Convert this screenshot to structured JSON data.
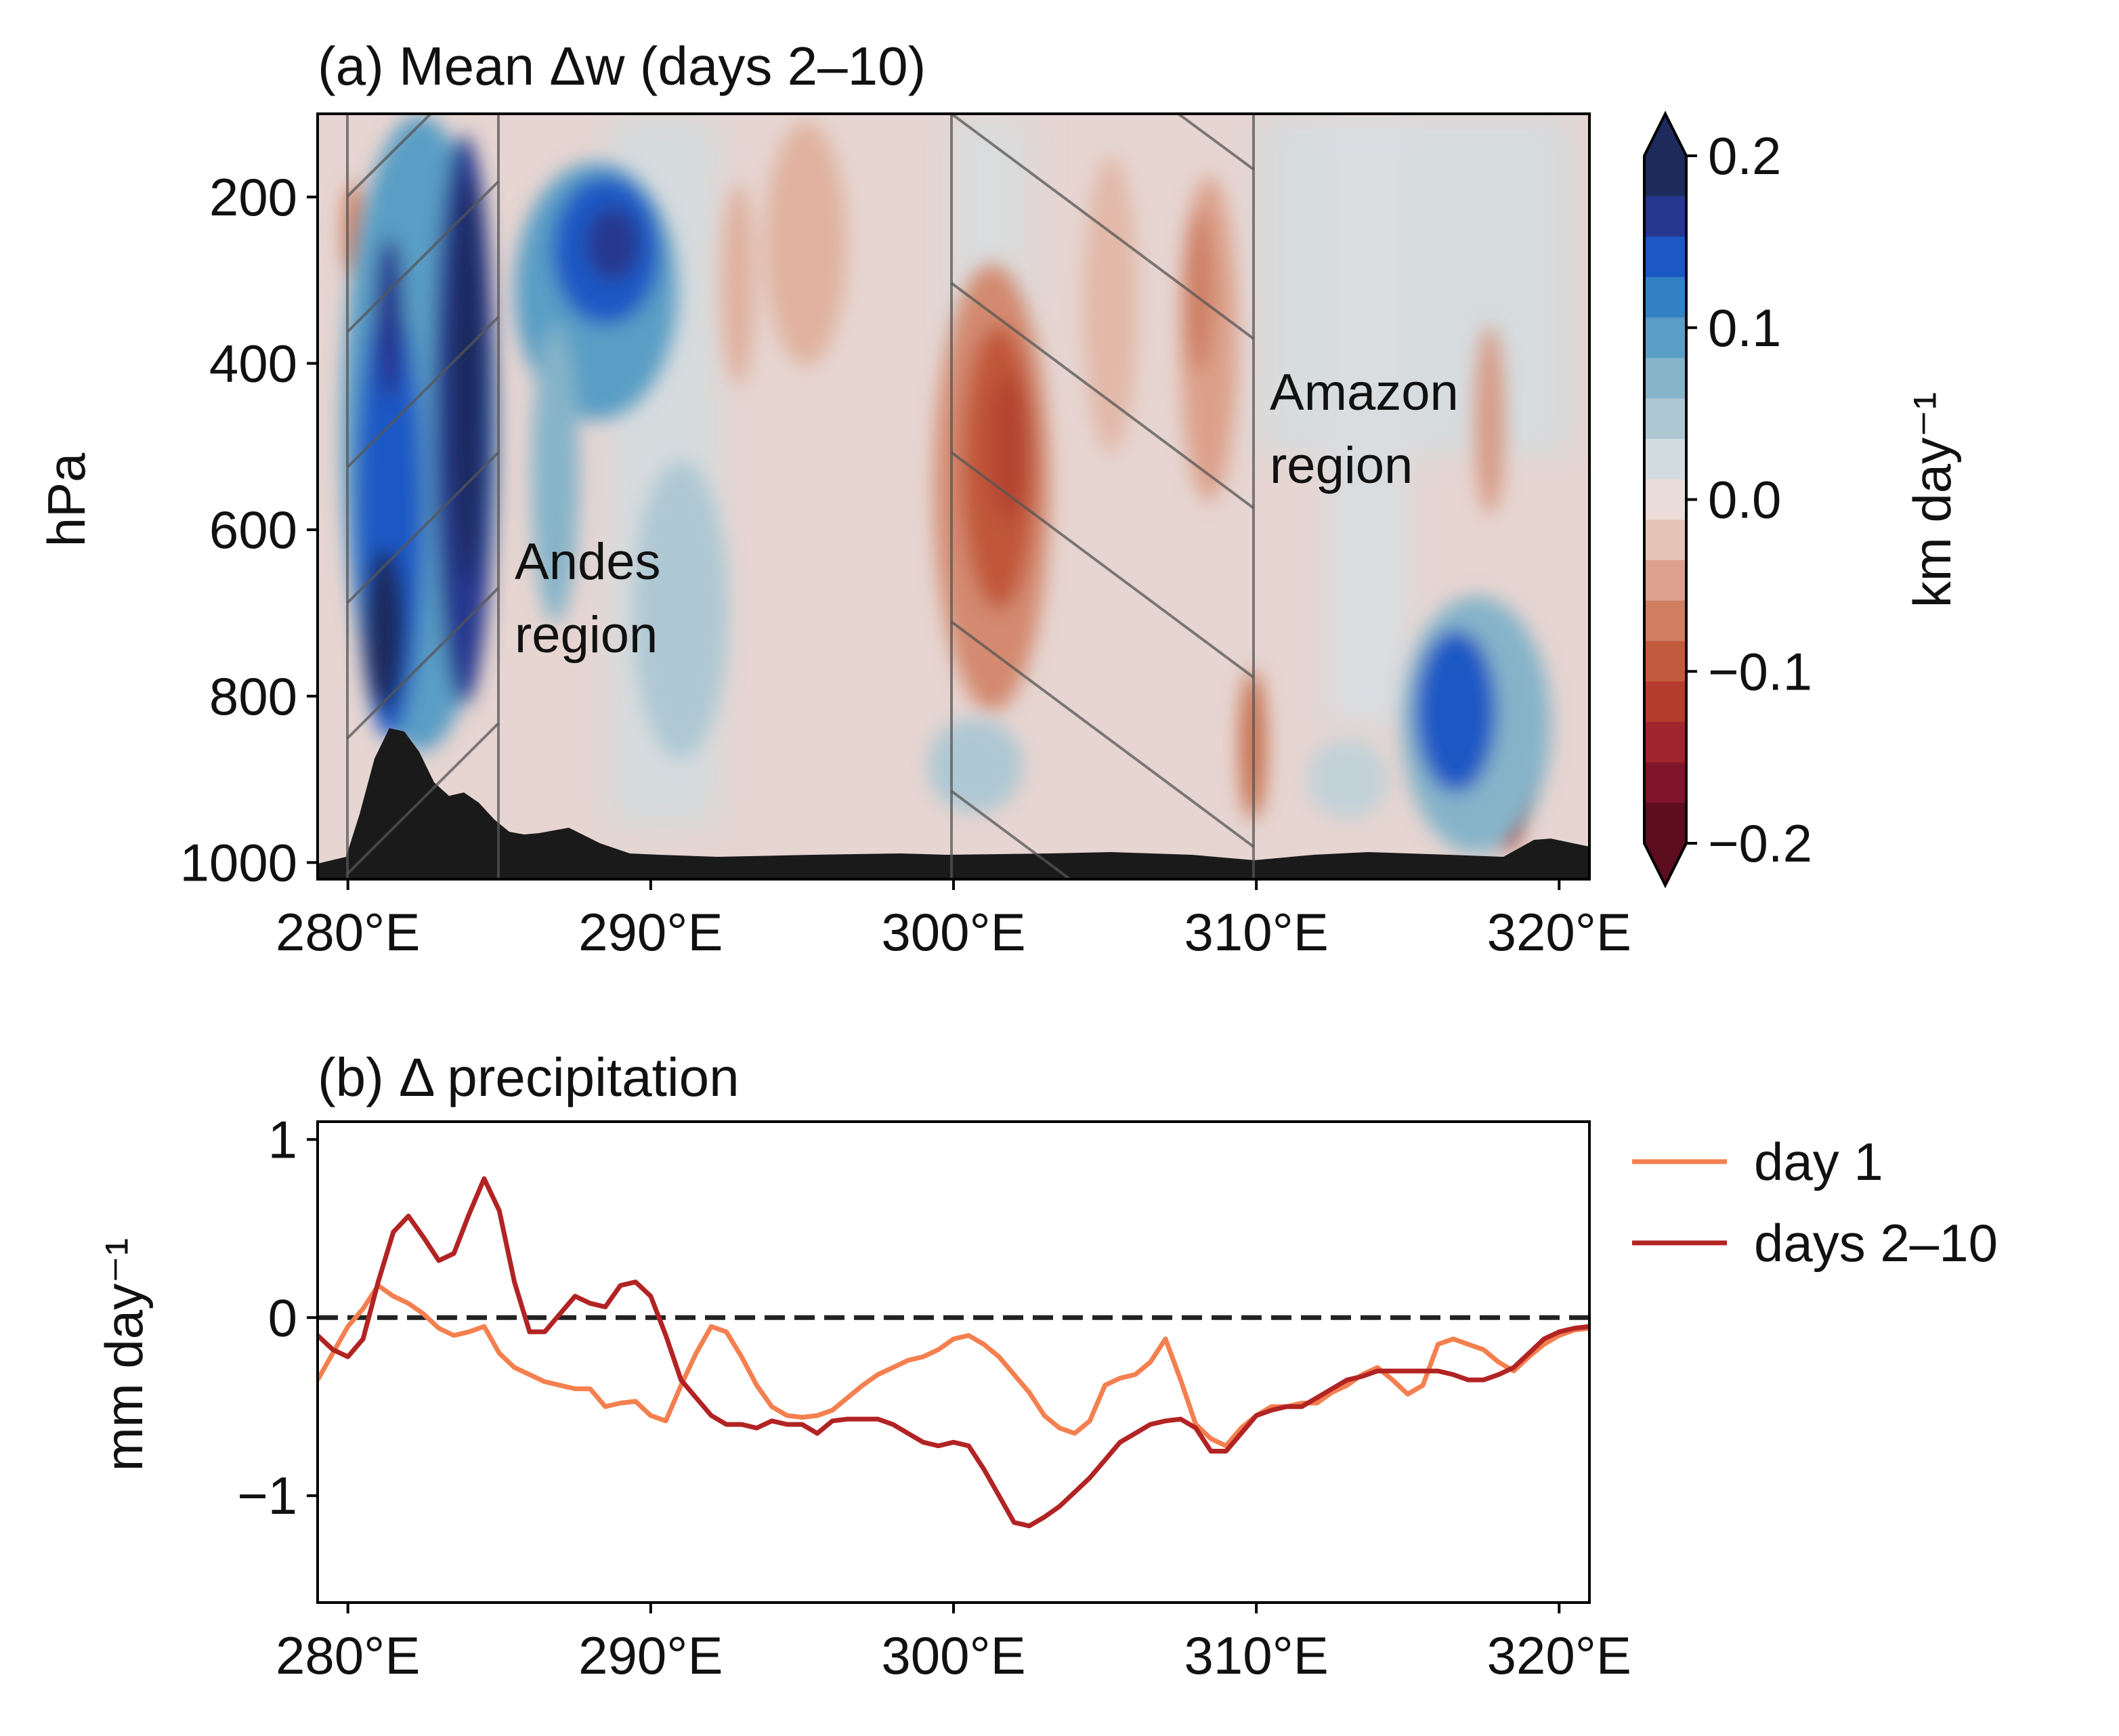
{
  "panel_a": {
    "title": "(a) Mean Δw (days 2–10)",
    "ylabel": "hPa",
    "annotations": {
      "andes_1": "Andes",
      "andes_2": "region",
      "amazon_1": "Amazon",
      "amazon_2": "region"
    },
    "colorbar": {
      "label": "km day⁻¹",
      "ticks": [
        "0.2",
        "0.1",
        "0.0",
        "−0.1",
        "−0.2"
      ],
      "colors": [
        "#1d2b5c",
        "#25378f",
        "#1b58c4",
        "#3480c4",
        "#5a9ec5",
        "#85b4c9",
        "#aec8d3",
        "#d3dce0",
        "#eadcd8",
        "#e6c3b7",
        "#dca18c",
        "#cf7e62",
        "#c25b3e",
        "#b53b2d",
        "#a22430",
        "#80142a",
        "#5c0d1e"
      ]
    }
  },
  "panel_b": {
    "title": "(b) Δ precipitation",
    "ylabel": "mm day⁻¹",
    "legend": {
      "day1": "day 1",
      "days210": "days 2–10"
    }
  },
  "chart_data": [
    {
      "type": "heatmap",
      "title": "(a) Mean Δw (days 2–10)",
      "xlabel": "",
      "ylabel": "hPa",
      "x_ticks": [
        "280°E",
        "290°E",
        "300°E",
        "310°E",
        "320°E"
      ],
      "x_tick_values": [
        280,
        290,
        300,
        310,
        320
      ],
      "y_ticks": [
        "200",
        "400",
        "600",
        "800",
        "1000"
      ],
      "y_tick_values": [
        200,
        400,
        600,
        800,
        1000
      ],
      "xlim": [
        279,
        321
      ],
      "ylim": [
        1020,
        100
      ],
      "colorbar_range": [
        -0.2,
        0.2
      ],
      "colorbar_label": "km day⁻¹",
      "hatched_regions": [
        {
          "label": "Andes region",
          "x_range": [
            280,
            285
          ]
        },
        {
          "label": "Amazon region",
          "x_range": [
            300,
            310
          ]
        }
      ],
      "features": [
        {
          "sign": "positive",
          "center_lon": 284.0,
          "center_p": 420,
          "value": 0.2
        },
        {
          "sign": "positive",
          "center_lon": 281.3,
          "center_p": 720,
          "value": 0.2
        },
        {
          "sign": "positive",
          "center_lon": 289.0,
          "center_p": 280,
          "value": 0.17
        },
        {
          "sign": "negative",
          "center_lon": 301.8,
          "center_p": 480,
          "value": -0.1
        },
        {
          "sign": "negative",
          "center_lon": 308.5,
          "center_p": 400,
          "value": -0.07
        },
        {
          "sign": "positive",
          "center_lon": 316.8,
          "center_p": 800,
          "value": 0.15
        },
        {
          "sign": "negative",
          "center_lon": 318.3,
          "center_p": 880,
          "value": -0.12
        }
      ],
      "surface_pressure": {
        "x": [
          279,
          280,
          280.5,
          281,
          281.5,
          282,
          282.5,
          283,
          283.5,
          284,
          284.5,
          285,
          285.5,
          286,
          287,
          288,
          289,
          290,
          292,
          295,
          298,
          300,
          303,
          305,
          308,
          310,
          312,
          315,
          318,
          319,
          320,
          321
        ],
        "p": [
          1000,
          995,
          930,
          850,
          830,
          840,
          890,
          920,
          915,
          930,
          950,
          960,
          970,
          965,
          950,
          975,
          985,
          985,
          988,
          982,
          985,
          985,
          983,
          978,
          983,
          988,
          982,
          978,
          983,
          965,
          970,
          975
        ]
      }
    },
    {
      "type": "line",
      "title": "(b) Δ precipitation",
      "xlabel": "",
      "ylabel": "mm day⁻¹",
      "x_ticks": [
        "280°E",
        "290°E",
        "300°E",
        "310°E",
        "320°E"
      ],
      "y_ticks": [
        "1",
        "0",
        "−1"
      ],
      "y_tick_values": [
        1,
        0,
        -1
      ],
      "xlim": [
        279,
        321
      ],
      "ylim": [
        -1.6,
        1.1
      ],
      "reference_line": {
        "y": 0,
        "style": "dashed"
      },
      "legend_position": "right",
      "series": [
        {
          "name": "day 1",
          "color": "#f47f4f",
          "x": [
            279,
            279.5,
            280,
            280.5,
            281,
            281.5,
            282,
            282.5,
            283,
            283.5,
            284,
            284.5,
            285,
            285.5,
            286,
            286.5,
            287,
            287.5,
            288,
            288.5,
            289,
            289.5,
            290,
            290.5,
            291,
            291.5,
            292,
            292.5,
            293,
            293.5,
            294,
            294.5,
            295,
            295.5,
            296,
            296.5,
            297,
            297.5,
            298,
            298.5,
            299,
            299.5,
            300,
            300.5,
            301,
            301.5,
            302,
            302.5,
            303,
            303.5,
            304,
            304.5,
            305,
            305.5,
            306,
            306.5,
            307,
            307.5,
            308,
            308.5,
            309,
            309.5,
            310,
            310.5,
            311,
            311.5,
            312,
            312.5,
            313,
            313.5,
            314,
            314.5,
            315,
            315.5,
            316,
            316.5,
            317,
            317.5,
            318,
            318.5,
            319,
            319.5,
            320,
            320.5,
            321
          ],
          "y": [
            -0.35,
            -0.2,
            -0.05,
            0.05,
            0.18,
            0.12,
            0.08,
            0.02,
            -0.06,
            -0.1,
            -0.08,
            -0.05,
            -0.2,
            -0.28,
            -0.32,
            -0.36,
            -0.38,
            -0.4,
            -0.4,
            -0.5,
            -0.48,
            -0.47,
            -0.55,
            -0.58,
            -0.38,
            -0.2,
            -0.05,
            -0.08,
            -0.22,
            -0.38,
            -0.5,
            -0.55,
            -0.56,
            -0.55,
            -0.52,
            -0.45,
            -0.38,
            -0.32,
            -0.28,
            -0.24,
            -0.22,
            -0.18,
            -0.12,
            -0.1,
            -0.15,
            -0.22,
            -0.32,
            -0.42,
            -0.55,
            -0.62,
            -0.65,
            -0.58,
            -0.38,
            -0.34,
            -0.32,
            -0.25,
            -0.12,
            -0.35,
            -0.6,
            -0.68,
            -0.72,
            -0.62,
            -0.55,
            -0.5,
            -0.5,
            -0.48,
            -0.48,
            -0.42,
            -0.38,
            -0.32,
            -0.28,
            -0.35,
            -0.43,
            -0.38,
            -0.15,
            -0.12,
            -0.15,
            -0.18,
            -0.25,
            -0.3,
            -0.22,
            -0.15,
            -0.1,
            -0.07,
            -0.06
          ]
        },
        {
          "name": "days 2–10",
          "color": "#b22323",
          "x": [
            279,
            279.5,
            280,
            280.5,
            281,
            281.5,
            282,
            282.5,
            283,
            283.5,
            284,
            284.5,
            285,
            285.5,
            286,
            286.5,
            287,
            287.5,
            288,
            288.5,
            289,
            289.5,
            290,
            290.5,
            291,
            291.5,
            292,
            292.5,
            293,
            293.5,
            294,
            294.5,
            295,
            295.5,
            296,
            296.5,
            297,
            297.5,
            298,
            298.5,
            299,
            299.5,
            300,
            300.5,
            301,
            301.5,
            302,
            302.5,
            303,
            303.5,
            304,
            304.5,
            305,
            305.5,
            306,
            306.5,
            307,
            307.5,
            308,
            308.5,
            309,
            309.5,
            310,
            310.5,
            311,
            311.5,
            312,
            312.5,
            313,
            313.5,
            314,
            314.5,
            315,
            315.5,
            316,
            316.5,
            317,
            317.5,
            318,
            318.5,
            319,
            319.5,
            320,
            320.5,
            321
          ],
          "y": [
            -0.1,
            -0.18,
            -0.22,
            -0.12,
            0.2,
            0.48,
            0.57,
            0.45,
            0.32,
            0.36,
            0.58,
            0.78,
            0.6,
            0.2,
            -0.08,
            -0.08,
            0.02,
            0.12,
            0.08,
            0.06,
            0.18,
            0.2,
            0.12,
            -0.1,
            -0.35,
            -0.45,
            -0.55,
            -0.6,
            -0.6,
            -0.62,
            -0.58,
            -0.6,
            -0.6,
            -0.65,
            -0.58,
            -0.57,
            -0.57,
            -0.57,
            -0.6,
            -0.65,
            -0.7,
            -0.72,
            -0.7,
            -0.72,
            -0.85,
            -1.0,
            -1.15,
            -1.17,
            -1.12,
            -1.06,
            -0.98,
            -0.9,
            -0.8,
            -0.7,
            -0.65,
            -0.6,
            -0.58,
            -0.57,
            -0.62,
            -0.75,
            -0.75,
            -0.65,
            -0.55,
            -0.52,
            -0.5,
            -0.5,
            -0.45,
            -0.4,
            -0.35,
            -0.33,
            -0.3,
            -0.3,
            -0.3,
            -0.3,
            -0.3,
            -0.32,
            -0.35,
            -0.35,
            -0.32,
            -0.28,
            -0.2,
            -0.12,
            -0.08,
            -0.06,
            -0.05
          ]
        }
      ]
    }
  ]
}
